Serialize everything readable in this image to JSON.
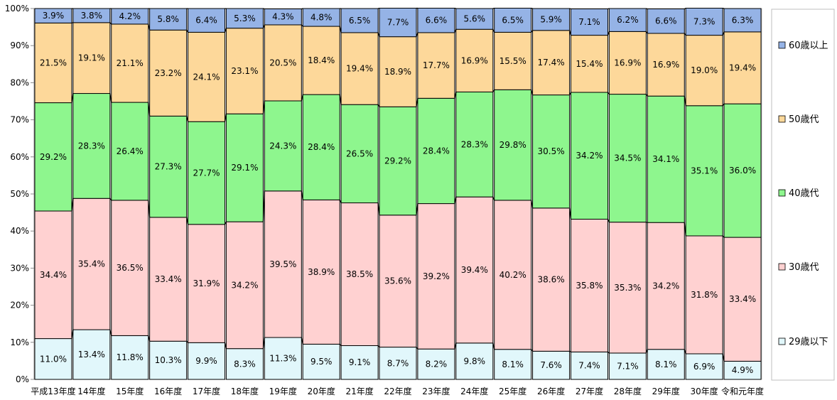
{
  "chart_data": {
    "type": "bar",
    "stacked": true,
    "percent": true,
    "categories": [
      "平成13年度",
      "14年度",
      "15年度",
      "16年度",
      "17年度",
      "18年度",
      "19年度",
      "20年度",
      "21年度",
      "22年度",
      "23年度",
      "24年度",
      "25年度",
      "26年度",
      "27年度",
      "28年度",
      "29年度",
      "30年度",
      "令和元年度"
    ],
    "series": [
      {
        "name": "29歳以下",
        "color": "#E1F7FB",
        "values": [
          11.0,
          13.4,
          11.8,
          10.3,
          9.9,
          8.3,
          11.3,
          9.5,
          9.1,
          8.7,
          8.2,
          9.8,
          8.1,
          7.6,
          7.4,
          7.1,
          8.1,
          6.9,
          4.9
        ],
        "labels": [
          "11.0%",
          "13.4%",
          "11.8%",
          "10.3%",
          "9.9%",
          "8.3%",
          "11.3%",
          "9.5%",
          "9.1%",
          "8.7%",
          "8.2%",
          "9.8%",
          "8.1%",
          "7.6%",
          "7.4%",
          "7.1%",
          "8.1%",
          "6.9%",
          "4.9%"
        ]
      },
      {
        "name": "30歳代",
        "color": "#FFD1D1",
        "values": [
          34.4,
          35.4,
          36.5,
          33.4,
          31.9,
          34.2,
          39.5,
          38.9,
          38.5,
          35.6,
          39.2,
          39.4,
          40.2,
          38.6,
          35.8,
          35.3,
          34.2,
          31.8,
          33.4
        ],
        "labels": [
          "34.4%",
          "35.4%",
          "36.5%",
          "33.4%",
          "31.9%",
          "34.2%",
          "39.5%",
          "38.9%",
          "38.5%",
          "35.6%",
          "39.2%",
          "39.4%",
          "40.2%",
          "38.6%",
          "35.8%",
          "35.3%",
          "34.2%",
          "31.8%",
          "33.4%"
        ]
      },
      {
        "name": "40歳代",
        "color": "#8EF68E",
        "values": [
          29.2,
          28.3,
          26.4,
          27.3,
          27.7,
          29.1,
          24.3,
          28.4,
          26.5,
          29.2,
          28.4,
          28.3,
          29.8,
          30.5,
          34.2,
          34.5,
          34.1,
          35.1,
          36.0
        ],
        "labels": [
          "29.2%",
          "28.3%",
          "26.4%",
          "27.3%",
          "27.7%",
          "29.1%",
          "24.3%",
          "28.4%",
          "26.5%",
          "29.2%",
          "28.4%",
          "28.3%",
          "29.8%",
          "30.5%",
          "34.2%",
          "34.5%",
          "34.1%",
          "35.1%",
          "36.0%"
        ]
      },
      {
        "name": "50歳代",
        "color": "#FDD89A",
        "values": [
          21.5,
          19.1,
          21.1,
          23.2,
          24.1,
          23.1,
          20.5,
          18.4,
          19.4,
          18.9,
          17.7,
          16.9,
          15.5,
          17.4,
          15.4,
          16.9,
          16.9,
          19.0,
          19.4
        ],
        "labels": [
          "21.5%",
          "19.1%",
          "21.1%",
          "23.2%",
          "24.1%",
          "23.1%",
          "20.5%",
          "18.4%",
          "19.4%",
          "18.9%",
          "17.7%",
          "16.9%",
          "15.5%",
          "17.4%",
          "15.4%",
          "16.9%",
          "16.9%",
          "19.0%",
          "19.4%"
        ]
      },
      {
        "name": "60歳以上",
        "color": "#95B3E6",
        "values": [
          3.9,
          3.8,
          4.2,
          5.8,
          6.4,
          5.3,
          4.3,
          4.8,
          6.5,
          7.7,
          6.6,
          5.6,
          6.5,
          5.9,
          7.1,
          6.2,
          6.6,
          7.3,
          6.3
        ],
        "labels": [
          "3.9%",
          "3.8%",
          "4.2%",
          "5.8%",
          "6.4%",
          "5.3%",
          "4.3%",
          "4.8%",
          "6.5%",
          "7.7%",
          "6.6%",
          "5.6%",
          "6.5%",
          "5.9%",
          "7.1%",
          "6.2%",
          "6.6%",
          "7.3%",
          "6.3%"
        ]
      }
    ],
    "ylim": [
      0,
      100
    ],
    "yticks": [
      "0%",
      "10%",
      "20%",
      "30%",
      "40%",
      "50%",
      "60%",
      "70%",
      "80%",
      "90%",
      "100%"
    ],
    "series_lines": true,
    "legend_position": "right",
    "grid": false
  }
}
